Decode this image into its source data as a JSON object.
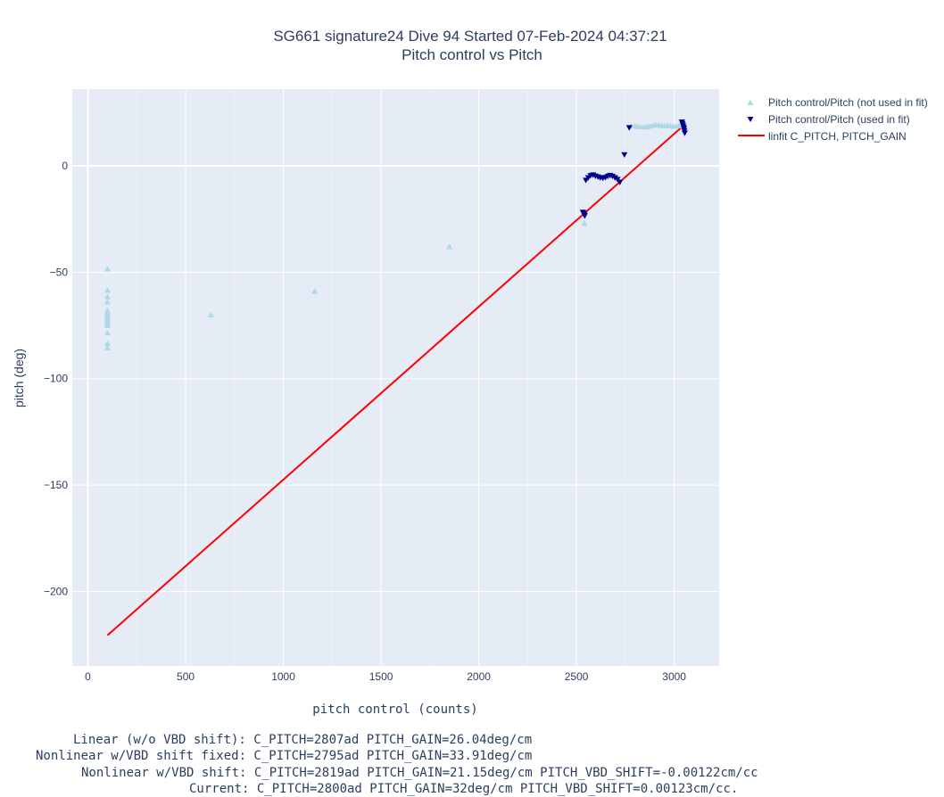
{
  "chart_data": {
    "type": "scatter",
    "title": "SG661 signature24 Dive 94 Started 07-Feb-2024 04:37:21",
    "subtitle": "Pitch control vs Pitch",
    "xlabel": "pitch control (counts)",
    "ylabel": "pitch (deg)",
    "xlim": [
      -80,
      3230
    ],
    "ylim": [
      -235,
      36
    ],
    "xticks": [
      0,
      500,
      1000,
      1500,
      2000,
      2500,
      3000
    ],
    "yticks": [
      0,
      -50,
      -100,
      -150,
      -200
    ],
    "xtick_labels": [
      "0",
      "500",
      "1000",
      "1500",
      "2000",
      "2500",
      "3000"
    ],
    "ytick_labels": [
      "0",
      "−50",
      "−100",
      "−150",
      "−200"
    ],
    "grid": true,
    "legend_position": "top-right, outside plot",
    "series": [
      {
        "name": "Pitch control/Pitch (not used in fit)",
        "marker": "triangle-up",
        "color": "#add8e6",
        "points": [
          [
            100,
            -48.5
          ],
          [
            100,
            -58.5
          ],
          [
            100,
            -61.5
          ],
          [
            100,
            -64
          ],
          [
            100,
            -68
          ],
          [
            100,
            -69
          ],
          [
            100,
            -70
          ],
          [
            100,
            -71
          ],
          [
            100,
            -72
          ],
          [
            100,
            -73
          ],
          [
            100,
            -74
          ],
          [
            100,
            -75
          ],
          [
            100,
            -78.5
          ],
          [
            100,
            -83.5
          ],
          [
            100,
            -85.5
          ],
          [
            630,
            -70
          ],
          [
            1160,
            -59
          ],
          [
            1850,
            -38
          ],
          [
            2540,
            -27
          ],
          [
            2780,
            18.8
          ],
          [
            2800,
            18.7
          ],
          [
            2815,
            18.4
          ],
          [
            2830,
            18.3
          ],
          [
            2845,
            18.2
          ],
          [
            2860,
            18.4
          ],
          [
            2875,
            18.6
          ],
          [
            2890,
            18.9
          ],
          [
            2905,
            19.2
          ],
          [
            2920,
            19.1
          ],
          [
            2935,
            19.0
          ],
          [
            2950,
            18.8
          ],
          [
            2965,
            18.9
          ],
          [
            2980,
            18.7
          ],
          [
            2995,
            18.5
          ],
          [
            3010,
            18.6
          ],
          [
            3025,
            18.8
          ]
        ]
      },
      {
        "name": "Pitch control/Pitch (used in fit)",
        "marker": "triangle-down",
        "color": "#00008b",
        "points": [
          [
            2533,
            -21.8
          ],
          [
            2535,
            -22.3
          ],
          [
            2538,
            -22.7
          ],
          [
            2540,
            -23.1
          ],
          [
            2542,
            -23.5
          ],
          [
            2548,
            -6.8
          ],
          [
            2560,
            -5.6
          ],
          [
            2572,
            -4.6
          ],
          [
            2585,
            -4.3
          ],
          [
            2597,
            -4.8
          ],
          [
            2610,
            -5.2
          ],
          [
            2622,
            -5.6
          ],
          [
            2635,
            -5.8
          ],
          [
            2648,
            -5.5
          ],
          [
            2660,
            -4.9
          ],
          [
            2672,
            -4.5
          ],
          [
            2684,
            -4.9
          ],
          [
            2697,
            -5.6
          ],
          [
            2710,
            -6.4
          ],
          [
            2722,
            -7.7
          ],
          [
            2745,
            5.2
          ],
          [
            2770,
            17.9
          ],
          [
            3040,
            20.6
          ],
          [
            3042,
            19.8
          ],
          [
            3045,
            19.0
          ],
          [
            3048,
            18.2
          ],
          [
            3050,
            17.5
          ],
          [
            3052,
            16.5
          ],
          [
            3054,
            15.4
          ]
        ]
      },
      {
        "name": "linfit C_PITCH, PITCH_GAIN",
        "type": "line",
        "color": "#ff0000",
        "x": [
          100,
          3054
        ],
        "y": [
          -220.6,
          19.4
        ]
      }
    ]
  },
  "notes": [
    "Linear (w/o VBD shift): C_PITCH=2807ad PITCH_GAIN=26.04deg/cm",
    "Nonlinear w/VBD shift fixed: C_PITCH=2795ad PITCH_GAIN=33.91deg/cm",
    "Nonlinear w/VBD shift: C_PITCH=2819ad PITCH_GAIN=21.15deg/cm PITCH_VBD_SHIFT=-0.00122cm/cc",
    "Current: C_PITCH=2800ad PITCH_GAIN=32deg/cm PITCH_VBD_SHIFT=0.00123cm/cc."
  ]
}
